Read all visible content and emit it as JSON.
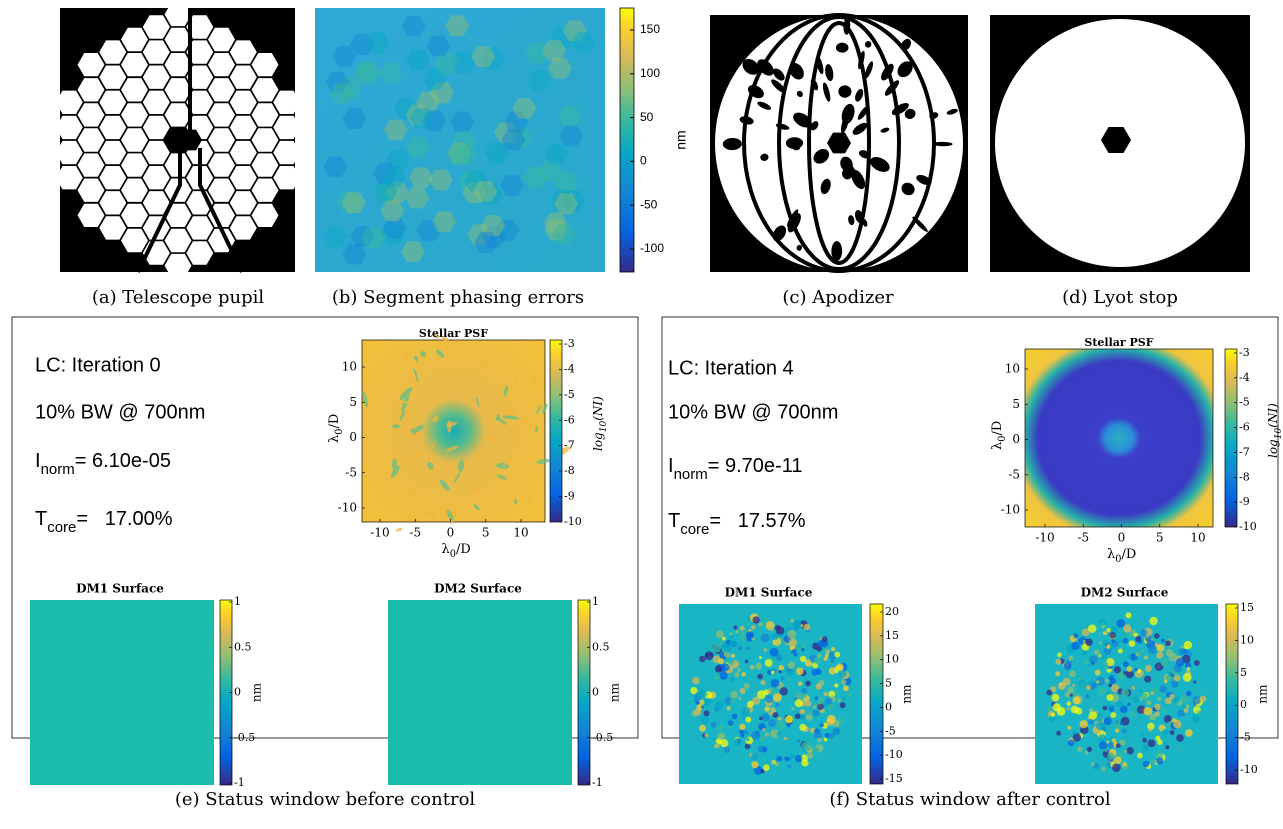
{
  "figures": [
    {
      "caption": "(a) Telescope pupil"
    },
    {
      "caption": "(b) Segment phasing errors",
      "colorbar": {
        "label": "nm",
        "ticks": [
          "150",
          "100",
          "50",
          "0",
          "-50",
          "-100"
        ]
      }
    },
    {
      "caption": "(c) Apodizer"
    },
    {
      "caption": "(d) Lyot stop"
    }
  ],
  "status_windows": [
    {
      "caption": "(e) Status window before control",
      "heading": "LC: Iteration 0",
      "bandwidth": "10% BW @ 700nm",
      "intensity": {
        "symbol": "I",
        "subscript": "norm",
        "value": "= 6.10e-05"
      },
      "throughput": {
        "symbol": "T",
        "subscript": "core",
        "value": "=   17.00%"
      },
      "psf": {
        "title": "Stellar PSF",
        "axis_label": {
          "symbol": "λ",
          "subscript": "0",
          "rest": "/D"
        },
        "xticks": [
          "-10",
          "-5",
          "0",
          "5",
          "10"
        ],
        "yticks": [
          "10",
          "5",
          "0",
          "-5",
          "-10"
        ],
        "colorbar_label": {
          "symbol": "log",
          "subscript": "10",
          "rest": "(NI)"
        },
        "colorbar_ticks": [
          "-3",
          "-4",
          "-5",
          "-6",
          "-7",
          "-8",
          "-9",
          "-10"
        ]
      },
      "dm1": {
        "title": "DM1 Surface",
        "unit": "nm",
        "colorbar_ticks": [
          "1",
          "0.5",
          "0",
          "-0.5",
          "-1"
        ]
      },
      "dm2": {
        "title": "DM2 Surface",
        "unit": "nm",
        "colorbar_ticks": [
          "1",
          "0.5",
          "0",
          "-0.5",
          "-1"
        ]
      }
    },
    {
      "caption": "(f) Status window after control",
      "heading": "LC: Iteration 4",
      "bandwidth": "10% BW @ 700nm",
      "intensity": {
        "symbol": "I",
        "subscript": "norm",
        "value": "= 9.70e-11"
      },
      "throughput": {
        "symbol": "T",
        "subscript": "core",
        "value": "=   17.57%"
      },
      "psf": {
        "title": "Stellar PSF",
        "axis_label": {
          "symbol": "λ",
          "subscript": "0",
          "rest": "/D"
        },
        "xticks": [
          "-10",
          "-5",
          "0",
          "5",
          "10"
        ],
        "yticks": [
          "10",
          "5",
          "0",
          "-5",
          "-10"
        ],
        "colorbar_label": {
          "symbol": "log",
          "subscript": "10",
          "rest": "(NI)"
        },
        "colorbar_ticks": [
          "-3",
          "-4",
          "-5",
          "-6",
          "-7",
          "-8",
          "-9",
          "-10"
        ]
      },
      "dm1": {
        "title": "DM1 Surface",
        "unit": "nm",
        "colorbar_ticks": [
          "20",
          "15",
          "10",
          "5",
          "0",
          "-5",
          "-10",
          "-15"
        ]
      },
      "dm2": {
        "title": "DM2 Surface",
        "unit": "nm",
        "colorbar_ticks": [
          "15",
          "10",
          "5",
          "0",
          "-5",
          "-10"
        ]
      }
    }
  ]
}
